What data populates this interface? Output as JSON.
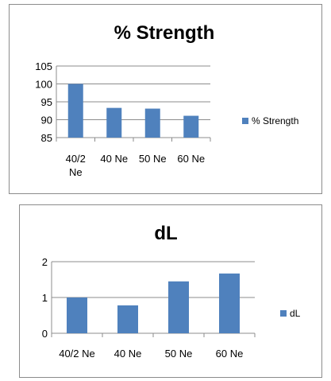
{
  "chart_data": [
    {
      "type": "bar",
      "title": "% Strength",
      "categories": [
        "40/2 Ne",
        "40 Ne",
        "50 Ne",
        "60 Ne"
      ],
      "series": [
        {
          "name": "% Strength",
          "values": [
            100,
            93.3,
            93.1,
            91.1
          ]
        }
      ],
      "ylim": [
        85,
        105
      ],
      "yticks": [
        85,
        90,
        95,
        100,
        105
      ],
      "grid": true,
      "legend": "right",
      "color": "#4f81bd"
    },
    {
      "type": "bar",
      "title": "dL",
      "categories": [
        "40/2 Ne",
        "40 Ne",
        "50 Ne",
        "60 Ne"
      ],
      "series": [
        {
          "name": "dL",
          "values": [
            1.0,
            0.78,
            1.45,
            1.67
          ]
        }
      ],
      "ylim": [
        0,
        2
      ],
      "yticks": [
        0,
        1,
        2
      ],
      "grid": true,
      "legend": "right",
      "color": "#4f81bd"
    }
  ]
}
